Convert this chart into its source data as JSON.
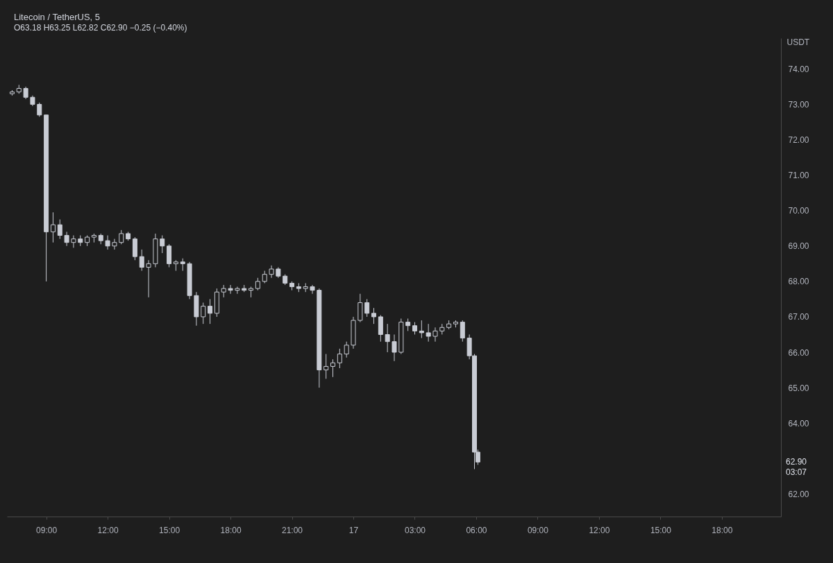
{
  "chart_data": {
    "type": "candlestick",
    "title": "Litecoin / TetherUS, 5",
    "subtitle": "O63.18 H63.25 L62.82 C62.90 −0.25 (−0.40%)",
    "ylabel": "USDT",
    "xlim": [
      "--12-16T07:15",
      "--12-17T20:43"
    ],
    "xticks": [
      {
        "value": "--12-16T09:00",
        "label": "09:00"
      },
      {
        "value": "--12-16T12:00",
        "label": "12:00"
      },
      {
        "value": "--12-16T15:00",
        "label": "15:00"
      },
      {
        "value": "--12-16T18:00",
        "label": "18:00"
      },
      {
        "value": "--12-16T21:00",
        "label": "21:00"
      },
      {
        "value": "--12-17T00:00",
        "label": "17"
      },
      {
        "value": "--12-17T03:00",
        "label": "03:00"
      },
      {
        "value": "--12-17T06:00",
        "label": "06:00"
      },
      {
        "value": "--12-17T09:00",
        "label": "09:00"
      },
      {
        "value": "--12-17T12:00",
        "label": "12:00"
      },
      {
        "value": "--12-17T15:00",
        "label": "15:00"
      },
      {
        "value": "--12-17T18:00",
        "label": "18:00"
      }
    ],
    "ylim": [
      61.36,
      74.87
    ],
    "yticks": [
      {
        "value": 62,
        "label": "62.00"
      },
      {
        "value": 64,
        "label": "64.00"
      },
      {
        "value": 65,
        "label": "65.00"
      },
      {
        "value": 66,
        "label": "66.00"
      },
      {
        "value": 67,
        "label": "67.00"
      },
      {
        "value": 68,
        "label": "68.00"
      },
      {
        "value": 69,
        "label": "69.00"
      },
      {
        "value": 70,
        "label": "70.00"
      },
      {
        "value": 71,
        "label": "71.00"
      },
      {
        "value": 72,
        "label": "72.00"
      },
      {
        "value": 73,
        "label": "73.00"
      },
      {
        "value": 74,
        "label": "74.00"
      }
    ],
    "annotations": [
      "62.90",
      "03:07"
    ],
    "series": [
      {
        "color": "#c9ccd4",
        "x": [
          "--12-16T07:20",
          "--12-16T07:40",
          "--12-16T08:00",
          "--12-16T08:20",
          "--12-16T08:40",
          "--12-16T09:00",
          "--12-16T09:20",
          "--12-16T09:40",
          "--12-16T10:00",
          "--12-16T10:20",
          "--12-16T10:40",
          "--12-16T11:00",
          "--12-16T11:20",
          "--12-16T11:40",
          "--12-16T12:00",
          "--12-16T12:20",
          "--12-16T12:40",
          "--12-16T13:00",
          "--12-16T13:20",
          "--12-16T13:40",
          "--12-16T14:00",
          "--12-16T14:20",
          "--12-16T14:40",
          "--12-16T15:00",
          "--12-16T15:20",
          "--12-16T15:40",
          "--12-16T16:00",
          "--12-16T16:20",
          "--12-16T16:40",
          "--12-16T17:00",
          "--12-16T17:20",
          "--12-16T17:40",
          "--12-16T18:00",
          "--12-16T18:20",
          "--12-16T18:40",
          "--12-16T19:00",
          "--12-16T19:20",
          "--12-16T19:40",
          "--12-16T20:00",
          "--12-16T20:20",
          "--12-16T20:40",
          "--12-16T21:00",
          "--12-16T21:20",
          "--12-16T21:40",
          "--12-16T22:00",
          "--12-16T22:20",
          "--12-16T22:40",
          "--12-16T23:00",
          "--12-16T23:20",
          "--12-16T23:40",
          "--12-17T00:00",
          "--12-17T00:20",
          "--12-17T00:40",
          "--12-17T01:00",
          "--12-17T01:20",
          "--12-17T01:40",
          "--12-17T02:00",
          "--12-17T02:20",
          "--12-17T02:40",
          "--12-17T03:00",
          "--12-17T03:20",
          "--12-17T03:40",
          "--12-17T04:00",
          "--12-17T04:20",
          "--12-17T04:40",
          "--12-17T05:00",
          "--12-17T05:20",
          "--12-17T05:40",
          "--12-17T05:55",
          "--12-17T06:05"
        ],
        "ohlc": [
          [
            73.3,
            73.4,
            73.25,
            73.35
          ],
          [
            73.35,
            73.55,
            73.3,
            73.45
          ],
          [
            73.45,
            73.5,
            73.15,
            73.2
          ],
          [
            73.2,
            73.25,
            72.95,
            73.0
          ],
          [
            73.0,
            73.05,
            72.65,
            72.7
          ],
          [
            72.7,
            72.7,
            68.0,
            69.4
          ],
          [
            69.4,
            69.95,
            69.1,
            69.6
          ],
          [
            69.6,
            69.75,
            69.2,
            69.3
          ],
          [
            69.3,
            69.4,
            69.0,
            69.1
          ],
          [
            69.1,
            69.3,
            68.95,
            69.2
          ],
          [
            69.2,
            69.3,
            69.0,
            69.1
          ],
          [
            69.1,
            69.3,
            69.0,
            69.25
          ],
          [
            69.25,
            69.35,
            69.1,
            69.3
          ],
          [
            69.3,
            69.35,
            69.05,
            69.15
          ],
          [
            69.15,
            69.3,
            68.9,
            69.0
          ],
          [
            69.0,
            69.2,
            68.9,
            69.1
          ],
          [
            69.1,
            69.45,
            69.05,
            69.35
          ],
          [
            69.35,
            69.4,
            69.15,
            69.2
          ],
          [
            69.2,
            69.25,
            68.6,
            68.7
          ],
          [
            68.7,
            68.9,
            68.3,
            68.4
          ],
          [
            68.4,
            68.6,
            67.55,
            68.5
          ],
          [
            68.5,
            69.35,
            68.4,
            69.2
          ],
          [
            69.2,
            69.3,
            68.8,
            69.0
          ],
          [
            69.0,
            69.05,
            68.4,
            68.5
          ],
          [
            68.5,
            68.6,
            68.3,
            68.55
          ],
          [
            68.55,
            68.65,
            68.3,
            68.5
          ],
          [
            68.5,
            68.55,
            67.5,
            67.6
          ],
          [
            67.6,
            67.7,
            66.75,
            67.0
          ],
          [
            67.0,
            67.4,
            66.8,
            67.3
          ],
          [
            67.3,
            67.5,
            66.8,
            67.1
          ],
          [
            67.1,
            67.8,
            67.0,
            67.7
          ],
          [
            67.7,
            67.9,
            67.55,
            67.8
          ],
          [
            67.8,
            67.9,
            67.65,
            67.75
          ],
          [
            67.75,
            67.85,
            67.65,
            67.8
          ],
          [
            67.8,
            67.9,
            67.7,
            67.75
          ],
          [
            67.75,
            67.85,
            67.55,
            67.8
          ],
          [
            67.8,
            68.1,
            67.75,
            68.0
          ],
          [
            68.0,
            68.3,
            67.95,
            68.2
          ],
          [
            68.2,
            68.45,
            68.1,
            68.35
          ],
          [
            68.35,
            68.4,
            68.1,
            68.15
          ],
          [
            68.15,
            68.2,
            67.9,
            67.95
          ],
          [
            67.95,
            68.0,
            67.75,
            67.85
          ],
          [
            67.85,
            67.95,
            67.7,
            67.8
          ],
          [
            67.8,
            67.95,
            67.7,
            67.85
          ],
          [
            67.85,
            67.9,
            67.65,
            67.75
          ],
          [
            67.75,
            67.8,
            65.0,
            65.5
          ],
          [
            65.5,
            65.95,
            65.25,
            65.6
          ],
          [
            65.6,
            65.8,
            65.3,
            65.7
          ],
          [
            65.7,
            66.1,
            65.55,
            65.95
          ],
          [
            65.95,
            66.3,
            65.85,
            66.2
          ],
          [
            66.2,
            67.0,
            66.1,
            66.9
          ],
          [
            66.9,
            67.65,
            66.85,
            67.4
          ],
          [
            67.4,
            67.5,
            67.0,
            67.1
          ],
          [
            67.1,
            67.25,
            66.8,
            67.0
          ],
          [
            67.0,
            67.05,
            66.3,
            66.5
          ],
          [
            66.5,
            66.8,
            66.0,
            66.3
          ],
          [
            66.3,
            66.5,
            65.75,
            66.0
          ],
          [
            66.0,
            66.95,
            65.95,
            66.85
          ],
          [
            66.85,
            66.95,
            66.6,
            66.75
          ],
          [
            66.75,
            66.85,
            66.5,
            66.6
          ],
          [
            66.6,
            66.9,
            66.4,
            66.55
          ],
          [
            66.55,
            66.8,
            66.3,
            66.45
          ],
          [
            66.45,
            66.7,
            66.3,
            66.6
          ],
          [
            66.6,
            66.8,
            66.5,
            66.7
          ],
          [
            66.7,
            66.9,
            66.65,
            66.8
          ],
          [
            66.8,
            66.9,
            66.7,
            66.85
          ],
          [
            66.85,
            66.9,
            66.3,
            66.4
          ],
          [
            66.4,
            66.5,
            65.8,
            65.9
          ],
          [
            65.9,
            65.95,
            62.7,
            63.18
          ],
          [
            63.18,
            63.25,
            62.82,
            62.9
          ]
        ]
      }
    ]
  }
}
